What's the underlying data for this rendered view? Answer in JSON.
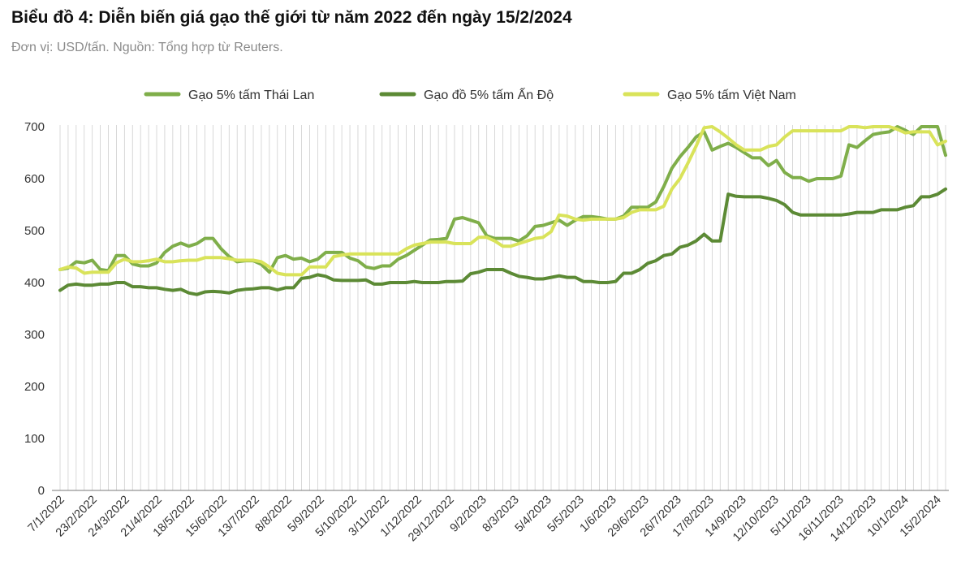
{
  "title": "Biểu đồ 4: Diễn biến giá gạo thế giới từ năm 2022 đến ngày 15/2/2024",
  "subtitle": "Đơn vị: USD/tấn. Nguồn: Tổng hợp từ Reuters.",
  "chart_data": {
    "type": "line",
    "ylim": [
      0,
      700
    ],
    "yticks": [
      0,
      100,
      200,
      300,
      400,
      500,
      600,
      700
    ],
    "grid": "vertical",
    "legend_position": "top-center",
    "x_tick_labels": [
      "7/1/2022",
      "23/2/2022",
      "24/3/2022",
      "21/4/2022",
      "18/5/2022",
      "15/6/2022",
      "13/7/2022",
      "8/8/2022",
      "5/9/2022",
      "5/10/2022",
      "3/11/2022",
      "1/12/2022",
      "29/12/2022",
      "9/2/2023",
      "8/3/2023",
      "5/4/2023",
      "5/5/2023",
      "1/6/2023",
      "29/6/2023",
      "26/7/2023",
      "17/8/2023",
      "14/9/2023",
      "12/10/2023",
      "5/11/2023",
      "16/11/2023",
      "14/12/2023",
      "10/1/2024",
      "15/2/2024"
    ],
    "series": [
      {
        "name": "Gạo 5% tấm Thái Lan",
        "color": "#7fae4a",
        "values": [
          425,
          428,
          440,
          438,
          443,
          425,
          423,
          452,
          452,
          436,
          432,
          432,
          438,
          458,
          470,
          476,
          470,
          475,
          485,
          485,
          465,
          450,
          440,
          442,
          442,
          435,
          420,
          448,
          452,
          445,
          447,
          440,
          445,
          458,
          458,
          458,
          447,
          442,
          430,
          427,
          432,
          432,
          445,
          452,
          462,
          472,
          482,
          483,
          485,
          522,
          525,
          520,
          515,
          490,
          485,
          485,
          485,
          480,
          490,
          508,
          510,
          515,
          520,
          510,
          520,
          527,
          527,
          525,
          522,
          522,
          528,
          545,
          545,
          545,
          555,
          585,
          620,
          642,
          660,
          680,
          690,
          655,
          662,
          668,
          660,
          650,
          640,
          640,
          625,
          635,
          612,
          602,
          602,
          595,
          600,
          600,
          600,
          605,
          665,
          660,
          673,
          685,
          688,
          690,
          700,
          693,
          685,
          700,
          700,
          700,
          645
        ]
      },
      {
        "name": "Gạo đồ 5% tấm Ấn Độ",
        "color": "#5c8a35",
        "values": [
          385,
          395,
          397,
          395,
          395,
          397,
          397,
          400,
          400,
          392,
          392,
          390,
          390,
          387,
          385,
          387,
          380,
          377,
          382,
          383,
          382,
          380,
          385,
          387,
          388,
          390,
          390,
          386,
          390,
          390,
          408,
          410,
          415,
          412,
          405,
          404,
          404,
          404,
          405,
          397,
          397,
          400,
          400,
          400,
          402,
          400,
          400,
          400,
          402,
          402,
          403,
          417,
          420,
          425,
          425,
          425,
          418,
          412,
          410,
          407,
          407,
          410,
          413,
          410,
          410,
          402,
          402,
          400,
          400,
          402,
          418,
          418,
          425,
          437,
          442,
          452,
          455,
          468,
          472,
          480,
          493,
          480,
          480,
          570,
          566,
          565,
          565,
          565,
          562,
          558,
          550,
          535,
          530,
          530,
          530,
          530,
          530,
          530,
          532,
          535,
          535,
          535,
          540,
          540,
          540,
          545,
          548,
          565,
          565,
          570,
          580
        ]
      },
      {
        "name": "Gạo 5% tấm Việt Nam",
        "color": "#d9e35a",
        "values": [
          425,
          430,
          428,
          418,
          420,
          420,
          420,
          438,
          445,
          440,
          440,
          442,
          445,
          440,
          440,
          442,
          443,
          443,
          448,
          448,
          448,
          446,
          443,
          443,
          443,
          440,
          430,
          418,
          415,
          415,
          415,
          430,
          430,
          430,
          450,
          453,
          455,
          455,
          455,
          455,
          455,
          455,
          455,
          465,
          472,
          475,
          478,
          478,
          478,
          475,
          475,
          475,
          487,
          487,
          480,
          470,
          470,
          475,
          480,
          485,
          487,
          498,
          530,
          528,
          522,
          520,
          522,
          522,
          522,
          522,
          525,
          535,
          540,
          540,
          540,
          547,
          580,
          600,
          630,
          662,
          698,
          700,
          690,
          678,
          665,
          655,
          655,
          655,
          662,
          665,
          680,
          692,
          692,
          692,
          692,
          692,
          692,
          692,
          700,
          700,
          698,
          700,
          700,
          700,
          695,
          688,
          690,
          690,
          690,
          665,
          672
        ]
      }
    ]
  }
}
